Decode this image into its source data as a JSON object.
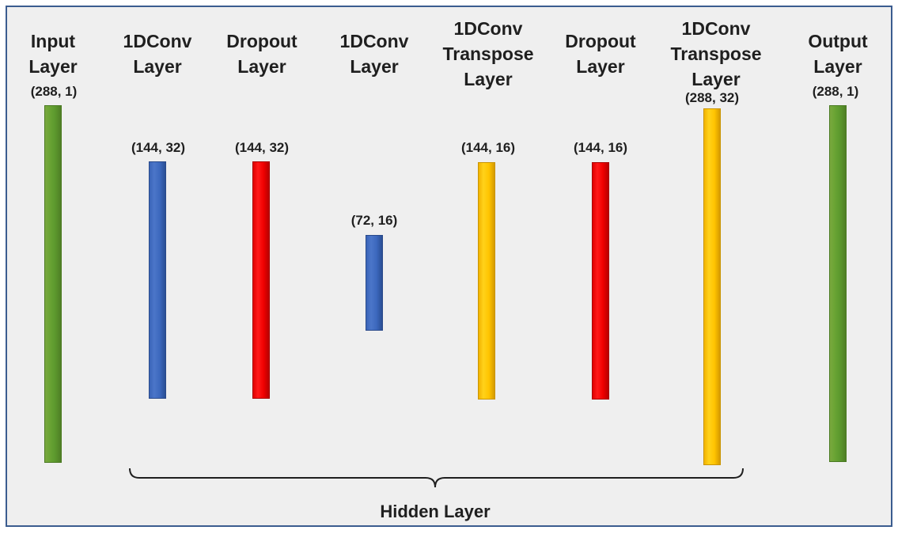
{
  "layers": [
    {
      "title_line1": "Input",
      "title_line2": "Layer",
      "title_line3": "",
      "shape": "(288, 1)",
      "color": "green"
    },
    {
      "title_line1": "1DConv",
      "title_line2": "Layer",
      "title_line3": "",
      "shape": "(144, 32)",
      "color": "blue"
    },
    {
      "title_line1": "Dropout",
      "title_line2": "Layer",
      "title_line3": "",
      "shape": "(144, 32)",
      "color": "red"
    },
    {
      "title_line1": "1DConv",
      "title_line2": "Layer",
      "title_line3": "",
      "shape": "(72, 16)",
      "color": "blue"
    },
    {
      "title_line1": "1DConv",
      "title_line2": "Transpose",
      "title_line3": "Layer",
      "shape": "(144, 16)",
      "color": "yellow"
    },
    {
      "title_line1": "Dropout",
      "title_line2": "Layer",
      "title_line3": "",
      "shape": "(144, 16)",
      "color": "red"
    },
    {
      "title_line1": "1DConv",
      "title_line2": "Transpose",
      "title_line3": "Layer",
      "shape": "(288, 32)",
      "color": "yellow"
    },
    {
      "title_line1": "Output",
      "title_line2": "Layer",
      "title_line3": "",
      "shape": "(288, 1)",
      "color": "green"
    }
  ],
  "hidden_layer_label": "Hidden Layer"
}
